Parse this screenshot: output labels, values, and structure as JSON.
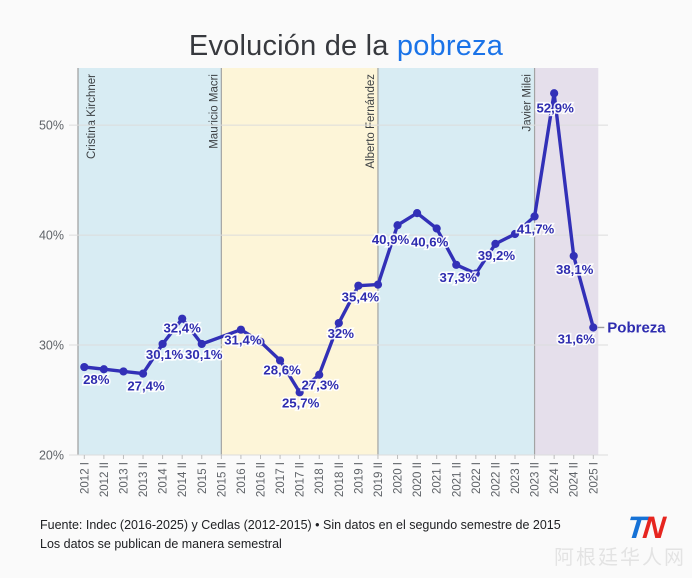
{
  "title": {
    "prefix": "Evolución de la ",
    "highlight": "pobreza"
  },
  "footer": {
    "line1": "Fuente: Indec (2016-2025) y Cedlas (2012-2015) • Sin datos en el segundo semestre de 2015",
    "line2": "Los datos se publican de manera semestral"
  },
  "logo": {
    "t": "T",
    "n": "N"
  },
  "watermark": {
    "text": "阿根廷华人网"
  },
  "chart_data": {
    "type": "line",
    "title": "Evolución de la pobreza",
    "x": [
      "2012 I",
      "2012 II",
      "2013 I",
      "2013 II",
      "2014 I",
      "2014 II",
      "2015 I",
      "2015 II",
      "2016 I",
      "2016 II",
      "2017 I",
      "2017 II",
      "2018 I",
      "2018 II",
      "2019 I",
      "2019 II",
      "2020 I",
      "2020 II",
      "2021 I",
      "2021 II",
      "2022 I",
      "2022 II",
      "2023 I",
      "2023 II",
      "2024 I",
      "2024 II",
      "2025 I"
    ],
    "series": [
      {
        "name": "Pobreza",
        "values": [
          28,
          27.8,
          27.6,
          27.4,
          30.1,
          32.4,
          30.1,
          null,
          31.4,
          30.3,
          28.6,
          25.7,
          27.3,
          32,
          35.4,
          35.5,
          40.9,
          42,
          40.6,
          37.3,
          36.5,
          39.2,
          40.1,
          41.7,
          52.9,
          38.1,
          31.6
        ]
      }
    ],
    "point_labels": [
      "28%",
      null,
      null,
      "27,4%",
      "30,1%",
      "32,4%",
      "30,1%",
      null,
      "31,4%",
      null,
      "28,6%",
      "25,7%",
      "27,3%",
      "32%",
      "35,4%",
      null,
      "40,9%",
      null,
      "40,6%",
      "37,3%",
      null,
      "39,2%",
      null,
      "41,7%",
      "52,9%",
      "38,1%",
      "31,6%"
    ],
    "missing_data": [
      "2015 II"
    ],
    "y_tick_labels": [
      "20%",
      "30%",
      "40%",
      "50%"
    ],
    "ylim": [
      20,
      55.2
    ],
    "grid": true,
    "legend_position": "end-of-line",
    "line_color": "#3230b7",
    "label_color": "#2e2caf",
    "periods": [
      {
        "label": "Cristina Kirchner",
        "start": null,
        "end": "2015 II",
        "color": "#d8ecf3"
      },
      {
        "label": "Mauricio Macri",
        "start": "2015 II",
        "end": "2019 II",
        "color": "#fdf5d8"
      },
      {
        "label": "Alberto Fernández",
        "start": "2019 II",
        "end": "2023 II",
        "color": "#d8ecf3"
      },
      {
        "label": "Javier Milei",
        "start": "2023 II",
        "end": null,
        "color": "#e5dfeb"
      }
    ]
  }
}
